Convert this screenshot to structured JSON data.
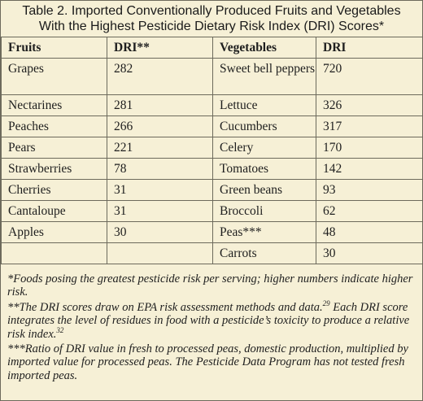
{
  "title": {
    "line1": "Table 2. Imported Conventionally Produced Fruits and Vegetables",
    "line2": "With the Highest Pesticide Dietary Risk Index (DRI) Scores*"
  },
  "headers": {
    "fruits": "Fruits",
    "dri_fruits": "DRI**",
    "vegetables": "Vegetables",
    "dri_vegetables": "DRI"
  },
  "rows": [
    {
      "fruit": "Grapes",
      "fdri": "282",
      "veg": "Sweet bell peppers",
      "vdri": "720"
    },
    {
      "fruit": "Nectarines",
      "fdri": "281",
      "veg": "Lettuce",
      "vdri": "326"
    },
    {
      "fruit": "Peaches",
      "fdri": "266",
      "veg": "Cucumbers",
      "vdri": "317"
    },
    {
      "fruit": "Pears",
      "fdri": "221",
      "veg": "Celery",
      "vdri": "170"
    },
    {
      "fruit": "Strawberries",
      "fdri": "78",
      "veg": "Tomatoes",
      "vdri": "142"
    },
    {
      "fruit": "Cherries",
      "fdri": "31",
      "veg": "Green beans",
      "vdri": "93"
    },
    {
      "fruit": "Cantaloupe",
      "fdri": "31",
      "veg": "Broccoli",
      "vdri": "62"
    },
    {
      "fruit": "Apples",
      "fdri": "30",
      "veg": "Peas***",
      "vdri": "48"
    },
    {
      "fruit": "",
      "fdri": "",
      "veg": "Carrots",
      "vdri": "30"
    }
  ],
  "footnotes": {
    "note1": "*Foods posing the greatest pesticide risk per serving; higher numbers indicate higher risk.",
    "note2_a": "**The DRI scores draw on EPA risk assessment methods and data.",
    "note2_ref1": "29",
    "note2_b": " Each DRI score integrates the level of residues in food with a pesticide’s toxicity to produce a relative risk index.",
    "note2_ref2": "32",
    "note3": "***Ratio of DRI value in fresh to processed peas, domestic production, multiplied by imported value for processed peas. The Pesticide Data Program has not tested fresh imported peas."
  }
}
